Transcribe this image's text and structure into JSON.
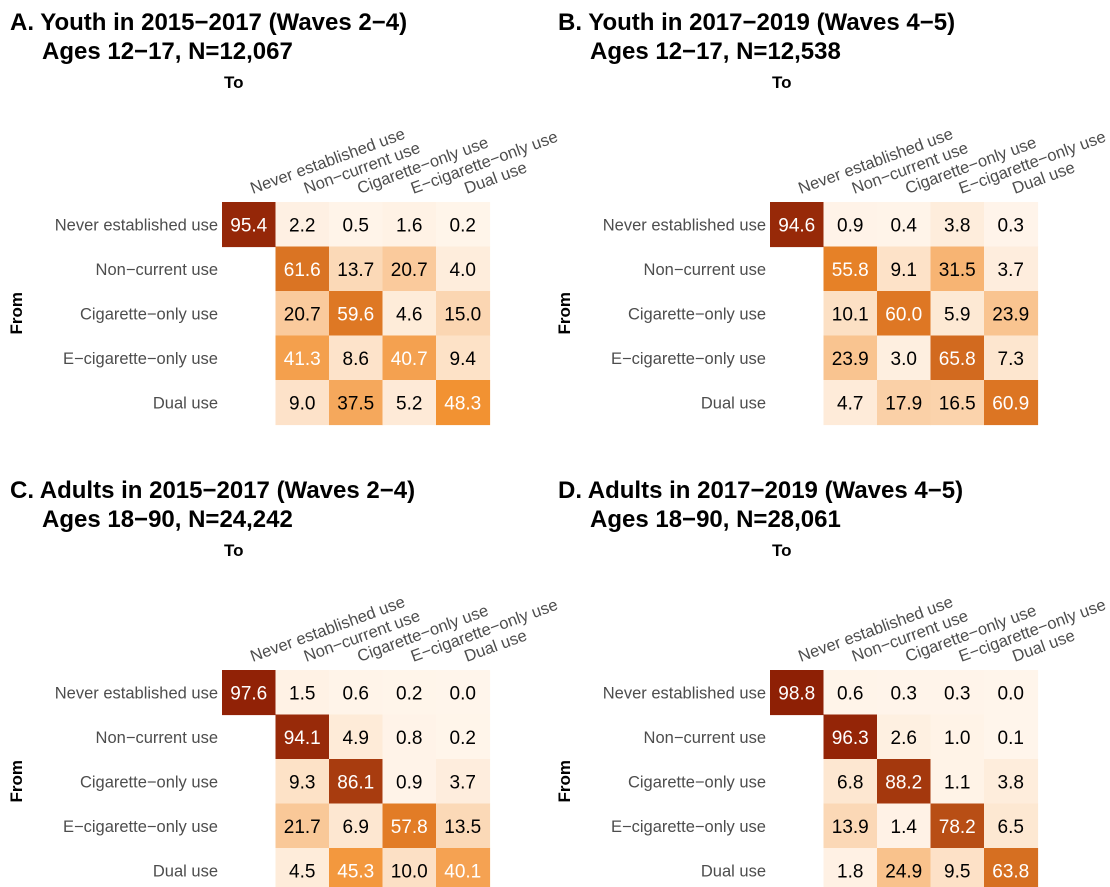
{
  "states": [
    "Never established use",
    "Non−current use",
    "Cigarette−only use",
    "E−cigarette−only use",
    "Dual use"
  ],
  "axis_labels": {
    "to": "To",
    "from": "From"
  },
  "color_scale": {
    "low": "#fff5eb",
    "mid": "#f28e2c",
    "high": "#8c1d04"
  },
  "chart_data": [
    {
      "type": "heatmap",
      "title": "A. Youth in 2015−2017 (Waves 2−4)",
      "subtitle": "Ages 12−17, N=12,067",
      "xlabel": "To",
      "ylabel": "From",
      "rows": [
        "Never established use",
        "Non−current use",
        "Cigarette−only use",
        "E−cigarette−only use",
        "Dual use"
      ],
      "cols": [
        "Never established use",
        "Non−current use",
        "Cigarette−only use",
        "E−cigarette−only use",
        "Dual use"
      ],
      "values": [
        [
          95.4,
          2.2,
          0.5,
          1.6,
          0.2
        ],
        [
          null,
          61.6,
          13.7,
          20.7,
          4.0
        ],
        [
          null,
          20.7,
          59.6,
          4.6,
          15.0
        ],
        [
          null,
          41.3,
          8.6,
          40.7,
          9.4
        ],
        [
          null,
          9.0,
          37.5,
          5.2,
          48.3
        ]
      ]
    },
    {
      "type": "heatmap",
      "title": "B. Youth in 2017−2019 (Waves 4−5)",
      "subtitle": "Ages 12−17, N=12,538",
      "xlabel": "To",
      "ylabel": "From",
      "rows": [
        "Never established use",
        "Non−current use",
        "Cigarette−only use",
        "E−cigarette−only use",
        "Dual use"
      ],
      "cols": [
        "Never established use",
        "Non−current use",
        "Cigarette−only use",
        "E−cigarette−only use",
        "Dual use"
      ],
      "values": [
        [
          94.6,
          0.9,
          0.4,
          3.8,
          0.3
        ],
        [
          null,
          55.8,
          9.1,
          31.5,
          3.7
        ],
        [
          null,
          10.1,
          60.0,
          5.9,
          23.9
        ],
        [
          null,
          23.9,
          3.0,
          65.8,
          7.3
        ],
        [
          null,
          4.7,
          17.9,
          16.5,
          60.9
        ]
      ]
    },
    {
      "type": "heatmap",
      "title": "C. Adults in 2015−2017 (Waves 2−4)",
      "subtitle": "Ages 18−90, N=24,242",
      "xlabel": "To",
      "ylabel": "From",
      "rows": [
        "Never established use",
        "Non−current use",
        "Cigarette−only use",
        "E−cigarette−only use",
        "Dual use"
      ],
      "cols": [
        "Never established use",
        "Non−current use",
        "Cigarette−only use",
        "E−cigarette−only use",
        "Dual use"
      ],
      "values": [
        [
          97.6,
          1.5,
          0.6,
          0.2,
          0.0
        ],
        [
          null,
          94.1,
          4.9,
          0.8,
          0.2
        ],
        [
          null,
          9.3,
          86.1,
          0.9,
          3.7
        ],
        [
          null,
          21.7,
          6.9,
          57.8,
          13.5
        ],
        [
          null,
          4.5,
          45.3,
          10.0,
          40.1
        ]
      ]
    },
    {
      "type": "heatmap",
      "title": "D. Adults in 2017−2019 (Waves 4−5)",
      "subtitle": "Ages 18−90, N=28,061",
      "xlabel": "To",
      "ylabel": "From",
      "rows": [
        "Never established use",
        "Non−current use",
        "Cigarette−only use",
        "E−cigarette−only use",
        "Dual use"
      ],
      "cols": [
        "Never established use",
        "Non−current use",
        "Cigarette−only use",
        "E−cigarette−only use",
        "Dual use"
      ],
      "values": [
        [
          98.8,
          0.6,
          0.3,
          0.3,
          0.0
        ],
        [
          null,
          96.3,
          2.6,
          1.0,
          0.1
        ],
        [
          null,
          6.8,
          88.2,
          1.1,
          3.8
        ],
        [
          null,
          13.9,
          1.4,
          78.2,
          6.5
        ],
        [
          null,
          1.8,
          24.9,
          9.5,
          63.8
        ]
      ]
    }
  ]
}
